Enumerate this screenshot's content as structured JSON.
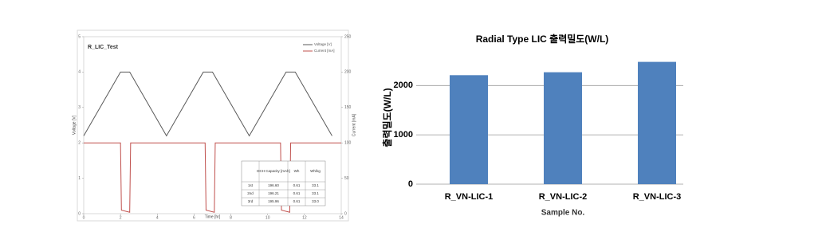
{
  "chart_data": [
    {
      "type": "line",
      "title": "R_LIC_Test",
      "x_label": "Time [hr]",
      "y_label": "Voltage [V]",
      "y2_label": "Current [mA]",
      "xlim": [
        0,
        14
      ],
      "xticks": [
        0,
        2,
        4,
        6,
        8,
        10,
        12,
        14
      ],
      "ylim": [
        0,
        5
      ],
      "yticks": [
        0,
        1,
        2,
        3,
        4,
        5
      ],
      "y2lim": [
        0,
        250
      ],
      "y2ticks": [
        0,
        50,
        100,
        150,
        200,
        250
      ],
      "legend": "upper right",
      "grid": false,
      "series": [
        {
          "name": "Voltage [V]",
          "color": "#595959",
          "x": [
            0,
            2,
            2.5,
            4.5,
            6.5,
            7,
            9,
            11,
            11.5,
            13.5
          ],
          "values": [
            2.2,
            4,
            4,
            2.2,
            4,
            4,
            2.2,
            4,
            4,
            2.2
          ]
        },
        {
          "name": "Current [mA]",
          "color": "#c0504d",
          "axis": "y2",
          "x": [
            0,
            2,
            2.05,
            2.5,
            2.55,
            6.6,
            6.65,
            7.1,
            7.15,
            10.7,
            10.75,
            11.2,
            11.25,
            14
          ],
          "values": [
            100,
            100,
            5,
            2,
            100,
            100,
            5,
            2,
            100,
            100,
            5,
            2,
            100,
            100
          ]
        }
      ],
      "table": {
        "header": [
          "DCH Capacity [mAh]",
          "Wh",
          "Wh/kg"
        ],
        "rows": [
          [
            "1st",
            "196.60",
            "0.61",
            "33.1"
          ],
          [
            "2nd",
            "196.21",
            "0.61",
            "33.1"
          ],
          [
            "3rd",
            "195.96",
            "0.61",
            "33.0"
          ]
        ]
      }
    },
    {
      "type": "bar",
      "title": "Radial Type LIC 출력밀도(W/L)",
      "x_label": "Sample No.",
      "y_label": "출력밀도(W/L)",
      "categories": [
        "R_VN-LIC-1",
        "R_VN-LIC-2",
        "R_VN-LIC-3"
      ],
      "values": [
        2210,
        2270,
        2480
      ],
      "color": "#4f81bd",
      "ylim": [
        0,
        2700
      ],
      "yticks": [
        0,
        1000,
        2000
      ],
      "grid": true
    }
  ]
}
